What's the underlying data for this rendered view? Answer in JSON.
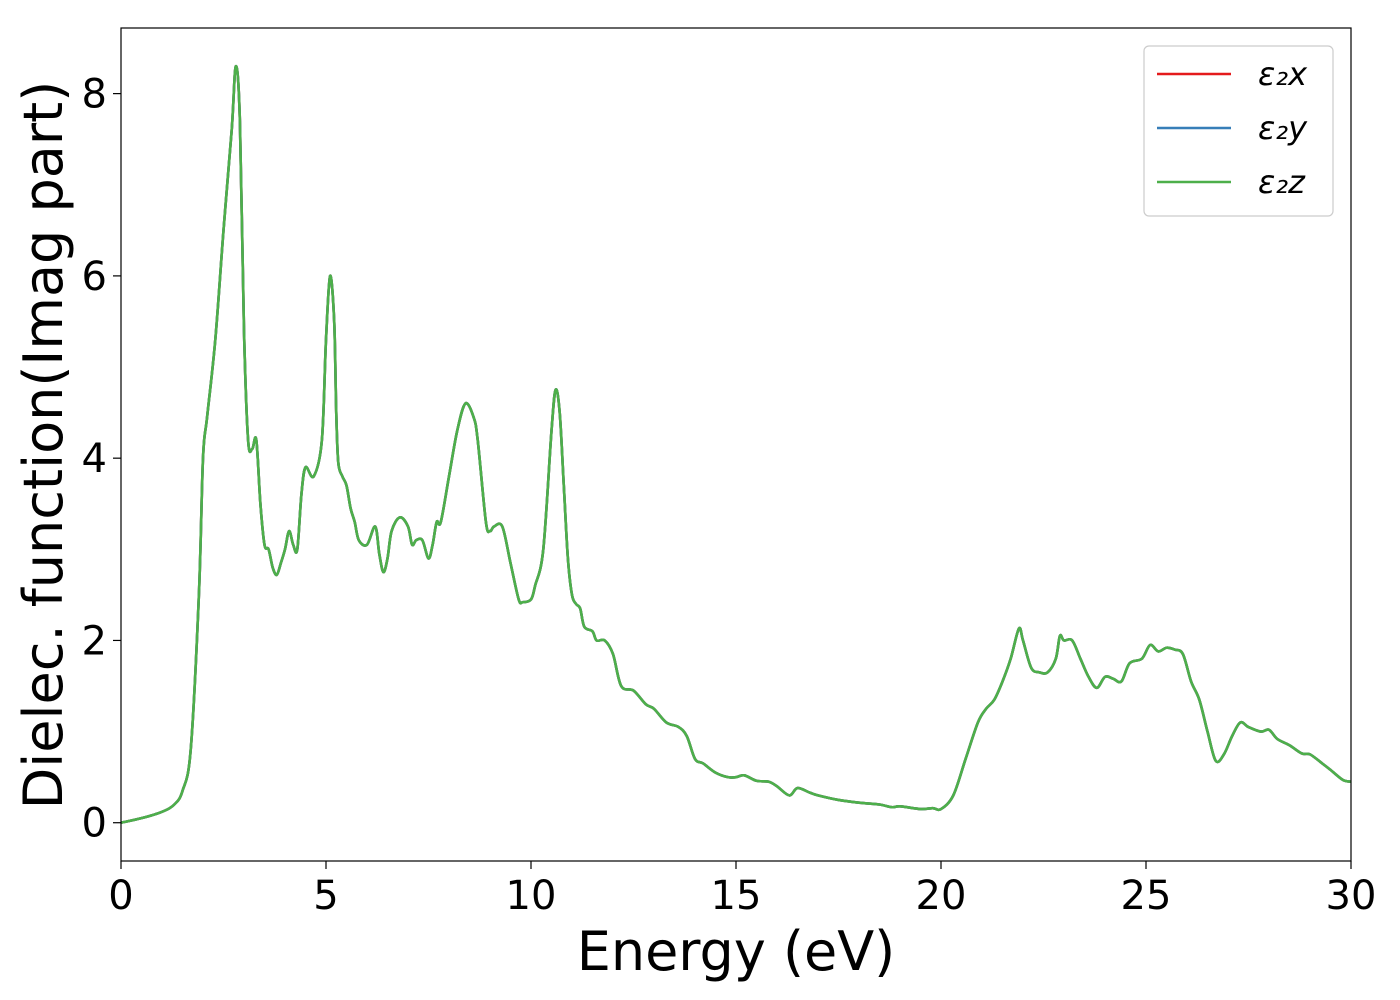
{
  "chart_data": {
    "type": "line",
    "xlabel": "Energy (eV)",
    "ylabel": "Dielec. function(Imag part)",
    "xlim": [
      0,
      30
    ],
    "ylim": [
      -0.42,
      8.72
    ],
    "xticks": [
      0,
      5,
      10,
      15,
      20,
      25,
      30
    ],
    "yticks": [
      0,
      2,
      4,
      6,
      8
    ],
    "grid": false,
    "legend": {
      "placement": "top-right"
    },
    "series": [
      {
        "name": "ε₂x",
        "color": "#e41a1c"
      },
      {
        "name": "ε₂y",
        "color": "#377eb8"
      },
      {
        "name": "ε₂z",
        "color": "#4daf4a"
      }
    ],
    "x": [
      0,
      0.5,
      1.0,
      1.3,
      1.5,
      1.7,
      1.9,
      2.0,
      2.1,
      2.3,
      2.5,
      2.7,
      2.8,
      2.9,
      3.0,
      3.1,
      3.2,
      3.3,
      3.4,
      3.5,
      3.6,
      3.7,
      3.8,
      3.9,
      4.0,
      4.1,
      4.2,
      4.3,
      4.4,
      4.5,
      4.7,
      4.9,
      5.0,
      5.1,
      5.2,
      5.25,
      5.3,
      5.4,
      5.5,
      5.6,
      5.7,
      5.8,
      6.0,
      6.2,
      6.3,
      6.4,
      6.5,
      6.6,
      6.8,
      7.0,
      7.1,
      7.2,
      7.35,
      7.5,
      7.6,
      7.7,
      7.8,
      8.0,
      8.2,
      8.4,
      8.6,
      8.7,
      8.9,
      9.0,
      9.1,
      9.3,
      9.5,
      9.7,
      9.8,
      10.0,
      10.1,
      10.3,
      10.5,
      10.6,
      10.7,
      10.8,
      10.9,
      11.0,
      11.1,
      11.2,
      11.3,
      11.5,
      11.6,
      11.8,
      12.0,
      12.2,
      12.5,
      12.8,
      13.0,
      13.3,
      13.6,
      13.8,
      14.0,
      14.2,
      14.5,
      14.8,
      15.0,
      15.2,
      15.5,
      15.8,
      16.0,
      16.3,
      16.5,
      16.8,
      17.0,
      17.5,
      18.0,
      18.5,
      18.8,
      19.0,
      19.5,
      19.8,
      20.0,
      20.3,
      20.6,
      20.9,
      21.1,
      21.3,
      21.5,
      21.7,
      21.9,
      22.0,
      22.2,
      22.4,
      22.6,
      22.8,
      22.9,
      23.0,
      23.2,
      23.4,
      23.6,
      23.8,
      24.0,
      24.2,
      24.4,
      24.6,
      24.9,
      25.1,
      25.3,
      25.5,
      25.7,
      25.9,
      26.1,
      26.3,
      26.5,
      26.7,
      26.9,
      27.1,
      27.3,
      27.5,
      27.8,
      28.0,
      28.2,
      28.5,
      28.8,
      29.0,
      29.3,
      29.5,
      29.8,
      30.0
    ],
    "y": [
      0.0,
      0.05,
      0.12,
      0.2,
      0.35,
      0.8,
      2.5,
      4.0,
      4.45,
      5.3,
      6.5,
      7.6,
      8.3,
      7.7,
      5.4,
      4.2,
      4.1,
      4.2,
      3.5,
      3.05,
      3.0,
      2.8,
      2.72,
      2.85,
      3.0,
      3.2,
      3.05,
      3.0,
      3.6,
      3.9,
      3.8,
      4.2,
      5.3,
      6.0,
      5.5,
      4.5,
      3.95,
      3.8,
      3.7,
      3.45,
      3.3,
      3.1,
      3.05,
      3.25,
      2.95,
      2.75,
      2.9,
      3.2,
      3.35,
      3.25,
      3.05,
      3.1,
      3.1,
      2.9,
      3.05,
      3.3,
      3.3,
      3.8,
      4.3,
      4.6,
      4.45,
      4.2,
      3.3,
      3.2,
      3.25,
      3.25,
      2.85,
      2.45,
      2.42,
      2.45,
      2.6,
      3.0,
      4.3,
      4.75,
      4.5,
      3.7,
      2.9,
      2.5,
      2.4,
      2.35,
      2.15,
      2.1,
      2.0,
      2.0,
      1.85,
      1.5,
      1.45,
      1.3,
      1.25,
      1.1,
      1.05,
      0.95,
      0.7,
      0.65,
      0.55,
      0.5,
      0.5,
      0.52,
      0.46,
      0.45,
      0.4,
      0.3,
      0.38,
      0.33,
      0.3,
      0.25,
      0.22,
      0.2,
      0.17,
      0.18,
      0.15,
      0.16,
      0.15,
      0.3,
      0.7,
      1.1,
      1.25,
      1.35,
      1.55,
      1.8,
      2.13,
      2.0,
      1.7,
      1.65,
      1.65,
      1.8,
      2.05,
      2.0,
      2.0,
      1.8,
      1.6,
      1.48,
      1.6,
      1.58,
      1.55,
      1.75,
      1.8,
      1.95,
      1.88,
      1.92,
      1.9,
      1.85,
      1.55,
      1.35,
      1.0,
      0.68,
      0.75,
      0.95,
      1.1,
      1.05,
      1.0,
      1.02,
      0.92,
      0.85,
      0.76,
      0.75,
      0.65,
      0.58,
      0.47,
      0.45
    ]
  }
}
